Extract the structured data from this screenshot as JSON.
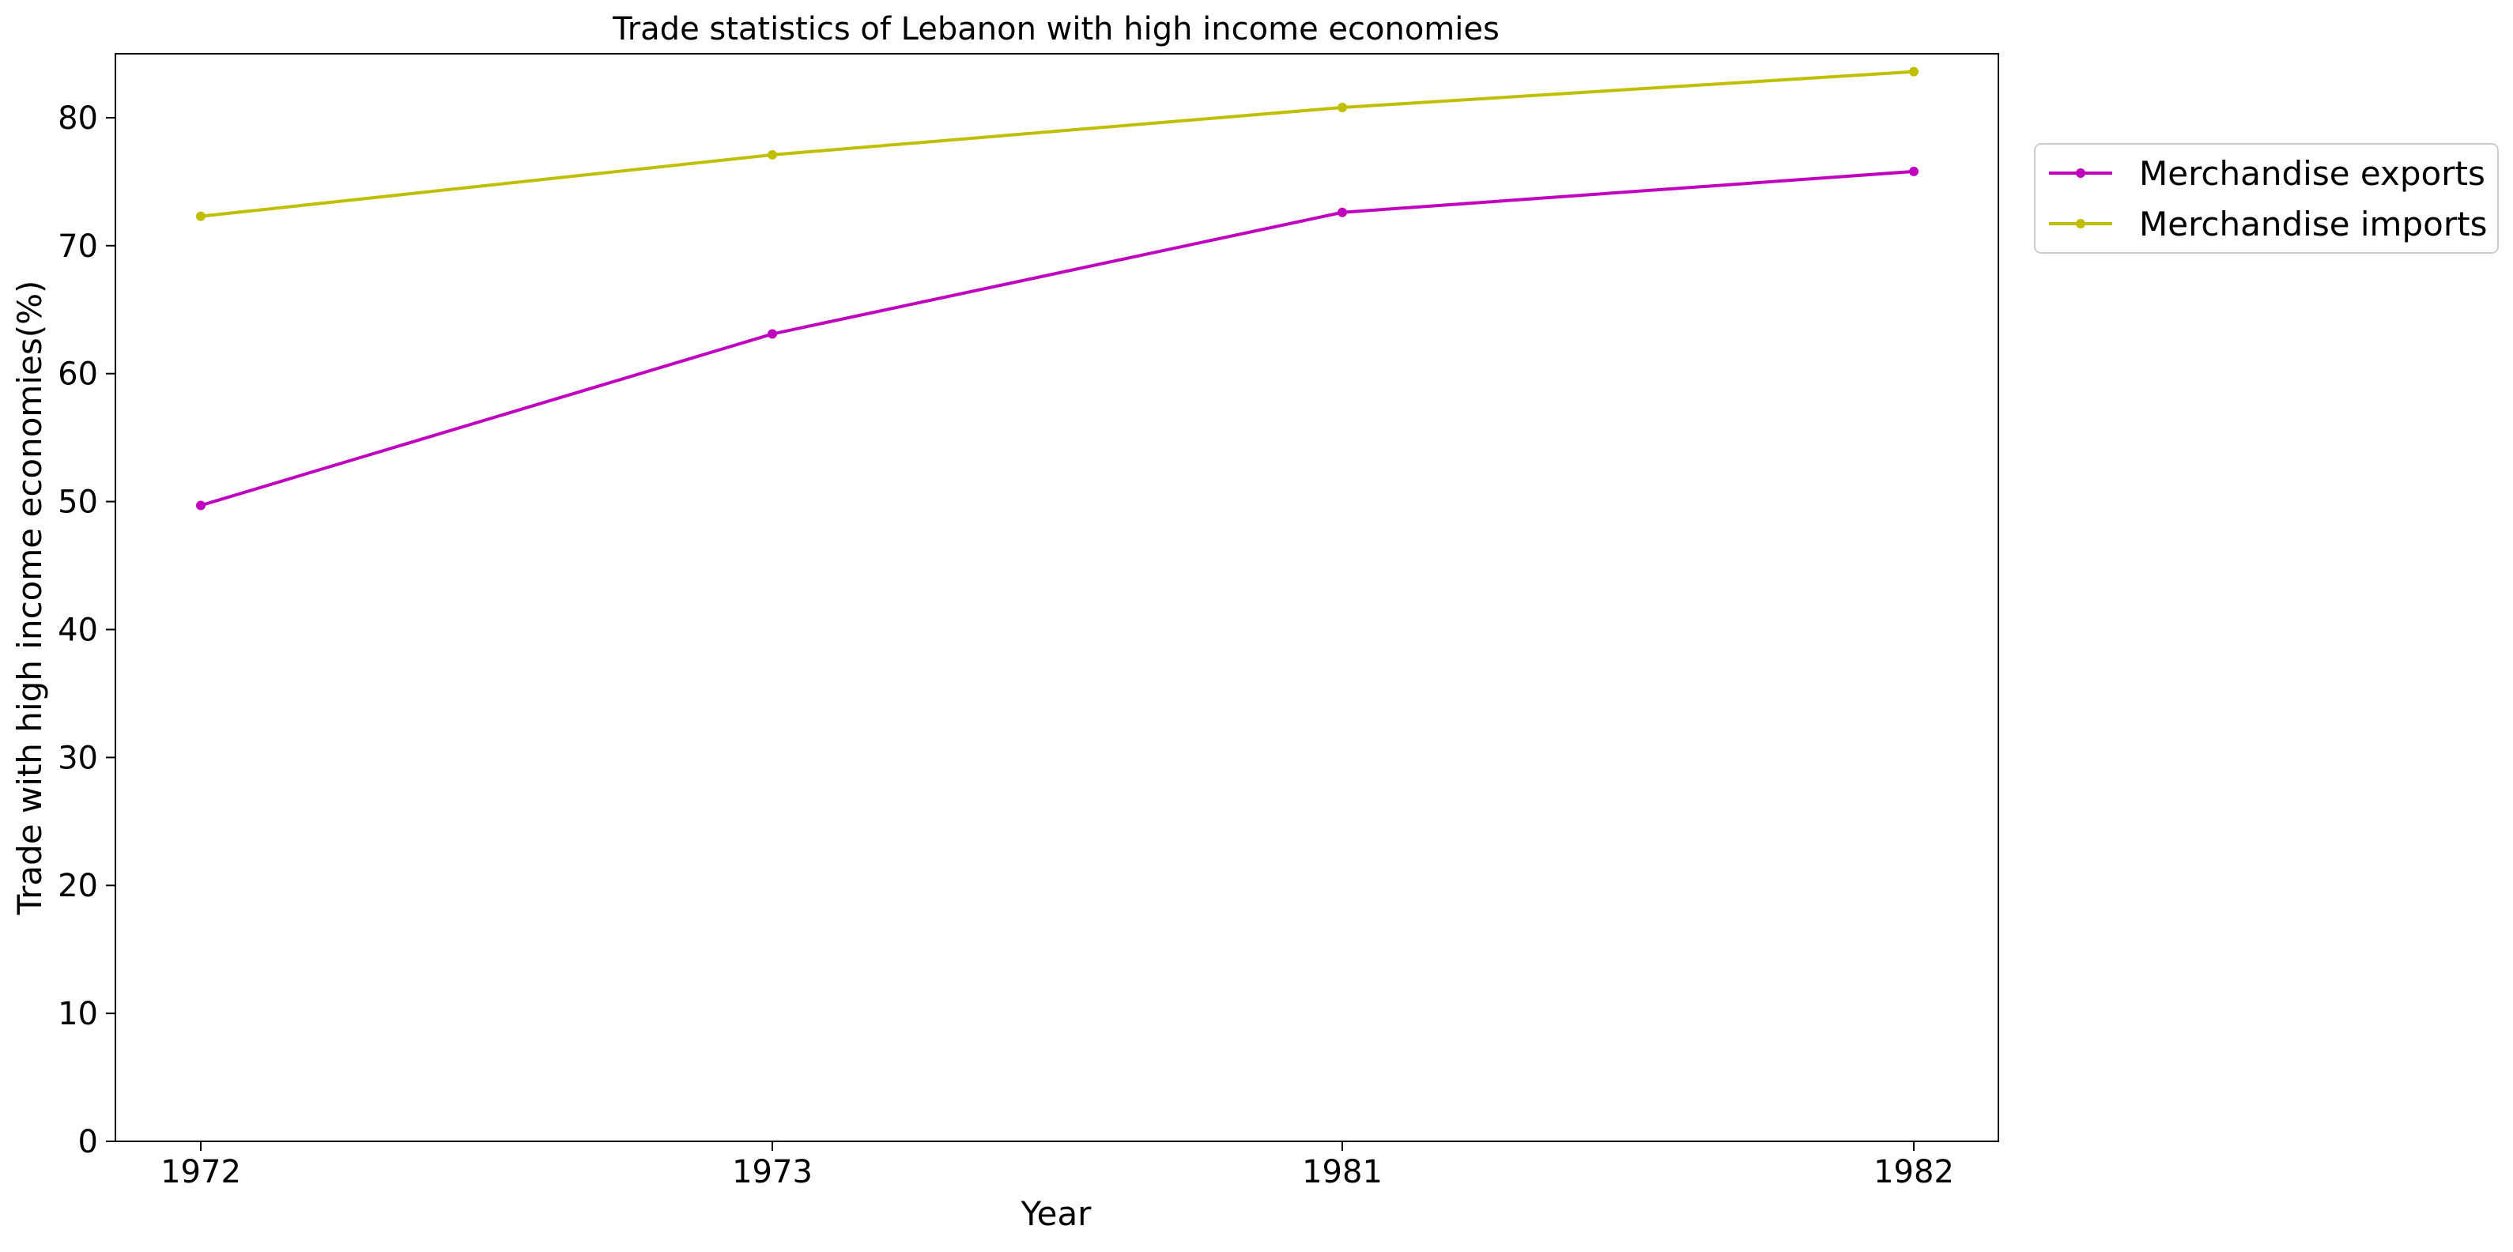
{
  "chart_data": {
    "type": "line",
    "title": "Trade statistics of Lebanon with high income economies",
    "xlabel": "Year",
    "ylabel": "Trade with high income economies(%)",
    "categories": [
      "1972",
      "1973",
      "1981",
      "1982"
    ],
    "ylim": [
      0,
      85
    ],
    "yticks": [
      0,
      10,
      20,
      30,
      40,
      50,
      60,
      70,
      80
    ],
    "grid": false,
    "legend_position": "outside-top-right",
    "series": [
      {
        "name": "Merchandise exports",
        "color": "#bf00bf",
        "values": [
          49.7,
          63.1,
          72.6,
          75.8
        ]
      },
      {
        "name": "Merchandise imports",
        "color": "#bfbf00",
        "values": [
          72.3,
          77.1,
          80.8,
          83.6
        ]
      }
    ]
  }
}
